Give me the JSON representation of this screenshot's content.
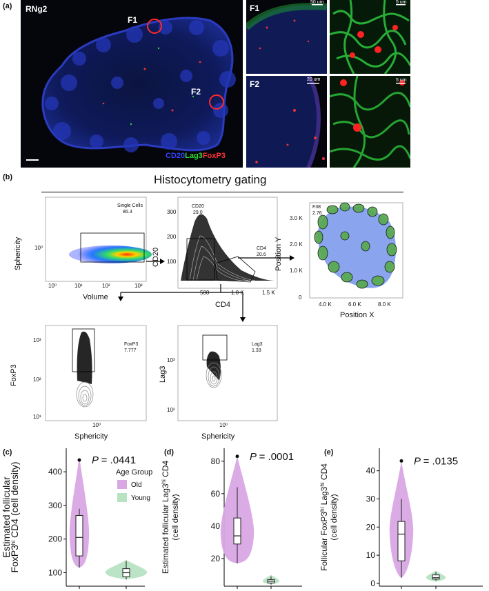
{
  "panel_a": {
    "label": "(a)",
    "main_title": "RNg2",
    "roi1": "F1",
    "roi2": "F2",
    "stain_cd20": "CD20",
    "stain_lag3": "Lag3",
    "stain_foxp3": "FoxP3",
    "f1_label": "F1",
    "f2_label": "F2",
    "f1_scale": "50 um",
    "f1_zoom_scale": "5 um",
    "f2_scale": "20 um",
    "f2_zoom_scale": "5 um",
    "colors": {
      "cd20": "#2233dd",
      "lag3": "#22cc33",
      "foxp3": "#ee2222"
    }
  },
  "panel_b": {
    "label": "(b)",
    "title": "Histocytometry gating",
    "plot1": {
      "gate": "Single Cells",
      "value": "86.3",
      "ylabel": "Sphericity",
      "xlabel": "Volume",
      "yticks": [
        "10⁰"
      ],
      "xticks": [
        "10⁰",
        "10¹",
        "10²",
        "10³"
      ]
    },
    "plot2": {
      "gate1": "CD20",
      "value1": "29.0",
      "gate2": "CD4",
      "value2": "20.6",
      "ylabel": "CD20",
      "xlabel": "CD4",
      "yticks": [
        "300",
        "200",
        "100"
      ],
      "xticks": [
        "500",
        "1.0 K",
        "1.5 K"
      ]
    },
    "plot3": {
      "gate": "F38",
      "value": "2.76",
      "ylabel": "Position Y",
      "xlabel": "Position X",
      "yticks": [
        "3.0 K",
        "2.0 K",
        "1.0 K",
        "0"
      ],
      "xticks": [
        "4.0 K",
        "6.0 K",
        "8.0 K"
      ]
    },
    "plot4": {
      "gate": "FoxP3",
      "value": "7.777",
      "ylabel": "FoxP3",
      "xlabel": "Sphericity",
      "yticks": [
        "10³",
        "10²",
        "10¹"
      ],
      "xticks": [
        "10⁰"
      ]
    },
    "plot5": {
      "gate": "Lag3",
      "value": "1.33",
      "ylabel": "Lag3",
      "xlabel": "Sphericity",
      "yticks": [
        "10³",
        "10²"
      ],
      "xticks": [
        "10⁰"
      ]
    }
  },
  "chart_data": [
    {
      "type": "violin",
      "panel": "(c)",
      "ylabel_line1": "Estimated follicular",
      "ylabel_line2": "FoxP3",
      "ylabel_sup": "hi",
      "ylabel_line2b": " CD4 (cell density)",
      "p_label": "P",
      "p_value": "= .0441",
      "yticks": [
        100,
        200,
        300,
        400
      ],
      "ylim": [
        60,
        470
      ],
      "legend_title": "Age Group",
      "legend": [
        "Old",
        "Young"
      ],
      "series": [
        {
          "name": "Old",
          "color": "#d8a7e4",
          "min": 115,
          "q1": 150,
          "median": 205,
          "q3": 270,
          "max": 290,
          "outlier": 435,
          "violin_top": 445,
          "violin_bottom": 115
        },
        {
          "name": "Young",
          "color": "#b7e3c3",
          "min": 80,
          "q1": 88,
          "median": 100,
          "q3": 112,
          "max": 135,
          "violin_top": 138,
          "violin_bottom": 80
        }
      ]
    },
    {
      "type": "violin",
      "panel": "(d)",
      "ylabel_line1": "Estimated follicular Lag3",
      "ylabel_sup": "hi",
      "ylabel_line1b": " CD4",
      "ylabel_line2": "(cell density)",
      "p_label": "P",
      "p_value": "= .0001",
      "yticks": [
        20,
        40,
        60,
        80
      ],
      "ylim": [
        3,
        88
      ],
      "series": [
        {
          "name": "Old",
          "color": "#d8a7e4",
          "min": 17,
          "q1": 29,
          "median": 34,
          "q3": 45,
          "max": 64,
          "outlier": 83,
          "violin_top": 83,
          "violin_bottom": 17
        },
        {
          "name": "Young",
          "color": "#b7e3c3",
          "min": 4,
          "q1": 5,
          "median": 6,
          "q3": 7,
          "max": 9,
          "violin_top": 10,
          "violin_bottom": 4
        }
      ]
    },
    {
      "type": "violin",
      "panel": "(e)",
      "ylabel_line1": "Follicular FoxP3",
      "ylabel_sup1": "hi",
      "ylabel_line1b": " Lag3",
      "ylabel_sup2": "hi",
      "ylabel_line1c": " CD4",
      "ylabel_line2": "(cell density)",
      "p_label": "P",
      "p_value": "= .0135",
      "yticks": [
        0,
        10,
        20,
        30,
        40
      ],
      "ylim": [
        -1,
        48
      ],
      "series": [
        {
          "name": "Old",
          "color": "#d8a7e4",
          "min": 2,
          "q1": 8,
          "median": 17.5,
          "q3": 22,
          "max": 30,
          "outlier": 43.5,
          "violin_top": 43.5,
          "violin_bottom": 2
        },
        {
          "name": "Young",
          "color": "#b7e3c3",
          "min": 1,
          "q1": 1.5,
          "median": 2,
          "q3": 3,
          "max": 4,
          "violin_top": 4.5,
          "violin_bottom": 0.5
        }
      ]
    }
  ]
}
